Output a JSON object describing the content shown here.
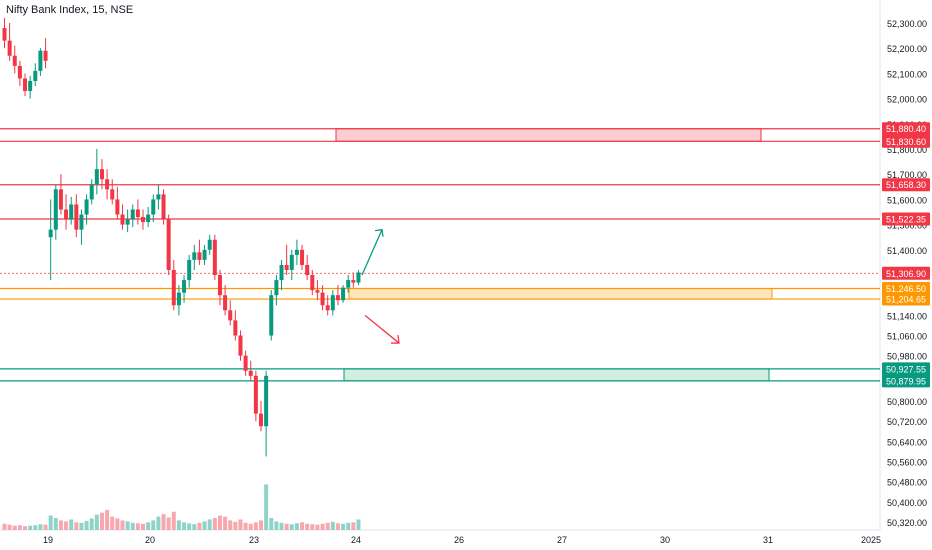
{
  "header": {
    "title": "Nifty Bank Index, 15, NSE"
  },
  "colors": {
    "up": "#089981",
    "down": "#f23645",
    "vol_up": "#8fd3c8",
    "vol_down": "#f7a7ad",
    "supply": "#f23645",
    "supply_fill": "#f9c6c9",
    "pivot": "#ff9800",
    "pivot_fill": "#ffe0b2",
    "demand": "#089981",
    "demand_fill": "#c8ecd7",
    "axis_text": "#131722"
  },
  "chart_data": {
    "type": "candlestick",
    "symbol": "Nifty Bank Index",
    "interval": "15",
    "exchange": "NSE",
    "y_ticks": [
      52300,
      52200,
      52100,
      52000,
      51900,
      51800,
      51700,
      51600,
      51500,
      51400,
      51140,
      51060,
      50980,
      50800,
      50720,
      50640,
      50560,
      50480,
      50400,
      50320
    ],
    "y_tick_labels": [
      "52,300.00",
      "52,200.00",
      "52,100.00",
      "52,000.00",
      "51,900.00",
      "51,800.00",
      "51,700.00",
      "51,600.00",
      "51,500.00",
      "51,400.00",
      "51,140.00",
      "51,060.00",
      "50,980.00",
      "50,800.00",
      "50,720.00",
      "50,640.00",
      "50,560.00",
      "50,480.00",
      "50,400.00",
      "50,320.00"
    ],
    "x_labels": [
      "19",
      "20",
      "23",
      "24",
      "26",
      "27",
      "30",
      "31",
      "2025"
    ],
    "price_levels": [
      {
        "label": "51,880.40",
        "value": 51880.4,
        "kind": "supply"
      },
      {
        "label": "51,830.60",
        "value": 51830.6,
        "kind": "supply"
      },
      {
        "label": "51,658.30",
        "value": 51658.3,
        "kind": "supply"
      },
      {
        "label": "51,522.35",
        "value": 51522.35,
        "kind": "supply"
      },
      {
        "label": "51,306.90",
        "value": 51306.9,
        "kind": "last"
      },
      {
        "label": "51,246.50",
        "value": 51246.5,
        "kind": "pivot"
      },
      {
        "label": "51,204.65",
        "value": 51204.65,
        "kind": "pivot"
      },
      {
        "label": "50,927.55",
        "value": 50927.55,
        "kind": "demand"
      },
      {
        "label": "50,879.95",
        "value": 50879.95,
        "kind": "demand"
      }
    ],
    "zones": [
      {
        "kind": "supply",
        "top": 51880.4,
        "bottom": 51830.6,
        "from_day": "19",
        "to_day": "31"
      },
      {
        "kind": "pivot",
        "top": 51246.5,
        "bottom": 51204.65,
        "from_day": "24",
        "to_day": "31"
      },
      {
        "kind": "demand",
        "top": 50927.55,
        "bottom": 50879.95,
        "from_day": "24",
        "to_day": "31"
      }
    ],
    "candles": [
      [
        52280,
        52320,
        52200,
        52230
      ],
      [
        52230,
        52300,
        52150,
        52170
      ],
      [
        52170,
        52210,
        52100,
        52130
      ],
      [
        52130,
        52150,
        52050,
        52080
      ],
      [
        52080,
        52100,
        52010,
        52030
      ],
      [
        52030,
        52090,
        52000,
        52070
      ],
      [
        52070,
        52140,
        52050,
        52110
      ],
      [
        52110,
        52200,
        52090,
        52190
      ],
      [
        52190,
        52240,
        52120,
        52150
      ],
      [
        51450,
        51600,
        51280,
        51480
      ],
      [
        51480,
        51660,
        51440,
        51640
      ],
      [
        51640,
        51700,
        51540,
        51560
      ],
      [
        51560,
        51620,
        51480,
        51520
      ],
      [
        51520,
        51610,
        51500,
        51580
      ],
      [
        51580,
        51620,
        51450,
        51480
      ],
      [
        51480,
        51560,
        51420,
        51540
      ],
      [
        51540,
        51620,
        51500,
        51600
      ],
      [
        51600,
        51680,
        51580,
        51660
      ],
      [
        51660,
        51800,
        51620,
        51720
      ],
      [
        51720,
        51760,
        51640,
        51680
      ],
      [
        51680,
        51720,
        51600,
        51640
      ],
      [
        51640,
        51680,
        51580,
        51600
      ],
      [
        51600,
        51650,
        51520,
        51540
      ],
      [
        51540,
        51580,
        51480,
        51500
      ],
      [
        51500,
        51560,
        51470,
        51520
      ],
      [
        51520,
        51580,
        51490,
        51560
      ],
      [
        51560,
        51600,
        51500,
        51530
      ],
      [
        51530,
        51560,
        51480,
        51510
      ],
      [
        51510,
        51570,
        51490,
        51540
      ],
      [
        51540,
        51620,
        51510,
        51600
      ],
      [
        51600,
        51660,
        51560,
        51620
      ],
      [
        51620,
        51640,
        51500,
        51520
      ],
      [
        51520,
        51540,
        51300,
        51320
      ],
      [
        51320,
        51360,
        51160,
        51180
      ],
      [
        51180,
        51260,
        51140,
        51230
      ],
      [
        51230,
        51300,
        51190,
        51280
      ],
      [
        51280,
        51380,
        51250,
        51360
      ],
      [
        51360,
        51420,
        51320,
        51390
      ],
      [
        51390,
        51440,
        51340,
        51360
      ],
      [
        51360,
        51420,
        51340,
        51400
      ],
      [
        51400,
        51460,
        51380,
        51440
      ],
      [
        51440,
        51460,
        51280,
        51300
      ],
      [
        51300,
        51320,
        51180,
        51220
      ],
      [
        51220,
        51260,
        51140,
        51160
      ],
      [
        51160,
        51200,
        51100,
        51120
      ],
      [
        51120,
        51160,
        51040,
        51060
      ],
      [
        51060,
        51080,
        50960,
        50980
      ],
      [
        50980,
        51000,
        50900,
        50920
      ],
      [
        50920,
        50960,
        50880,
        50900
      ],
      [
        50900,
        50920,
        50720,
        50750
      ],
      [
        50750,
        50800,
        50680,
        50700
      ],
      [
        50700,
        50920,
        50580,
        50900
      ],
      [
        51060,
        51240,
        51040,
        51220
      ],
      [
        51220,
        51300,
        51180,
        51280
      ],
      [
        51280,
        51360,
        51240,
        51340
      ],
      [
        51340,
        51420,
        51300,
        51320
      ],
      [
        51320,
        51400,
        51280,
        51380
      ],
      [
        51380,
        51440,
        51340,
        51400
      ],
      [
        51400,
        51420,
        51320,
        51340
      ],
      [
        51340,
        51380,
        51280,
        51300
      ],
      [
        51300,
        51320,
        51220,
        51240
      ],
      [
        51240,
        51280,
        51200,
        51230
      ],
      [
        51230,
        51260,
        51160,
        51180
      ],
      [
        51180,
        51220,
        51140,
        51160
      ],
      [
        51160,
        51240,
        51140,
        51220
      ],
      [
        51220,
        51260,
        51180,
        51200
      ],
      [
        51200,
        51260,
        51190,
        51250
      ],
      [
        51250,
        51300,
        51230,
        51280
      ],
      [
        51280,
        51310,
        51250,
        51270
      ],
      [
        51270,
        51320,
        51260,
        51310
      ]
    ],
    "volumes": [
      0.13,
      0.11,
      0.09,
      0.1,
      0.08,
      0.09,
      0.1,
      0.12,
      0.11,
      0.3,
      0.25,
      0.2,
      0.18,
      0.22,
      0.16,
      0.15,
      0.19,
      0.24,
      0.32,
      0.36,
      0.42,
      0.28,
      0.24,
      0.2,
      0.18,
      0.15,
      0.14,
      0.13,
      0.16,
      0.2,
      0.28,
      0.33,
      0.26,
      0.38,
      0.2,
      0.16,
      0.14,
      0.12,
      0.15,
      0.18,
      0.22,
      0.25,
      0.3,
      0.28,
      0.2,
      0.17,
      0.22,
      0.15,
      0.13,
      0.16,
      0.2,
      0.95,
      0.25,
      0.18,
      0.15,
      0.13,
      0.12,
      0.14,
      0.16,
      0.13,
      0.12,
      0.11,
      0.13,
      0.15,
      0.17,
      0.14,
      0.13,
      0.15,
      0.16,
      0.22
    ],
    "projection": [
      {
        "direction": "up",
        "from_price": 51300,
        "to_price": 51480
      },
      {
        "direction": "down",
        "from_price": 51140,
        "to_price": 51030
      }
    ]
  }
}
